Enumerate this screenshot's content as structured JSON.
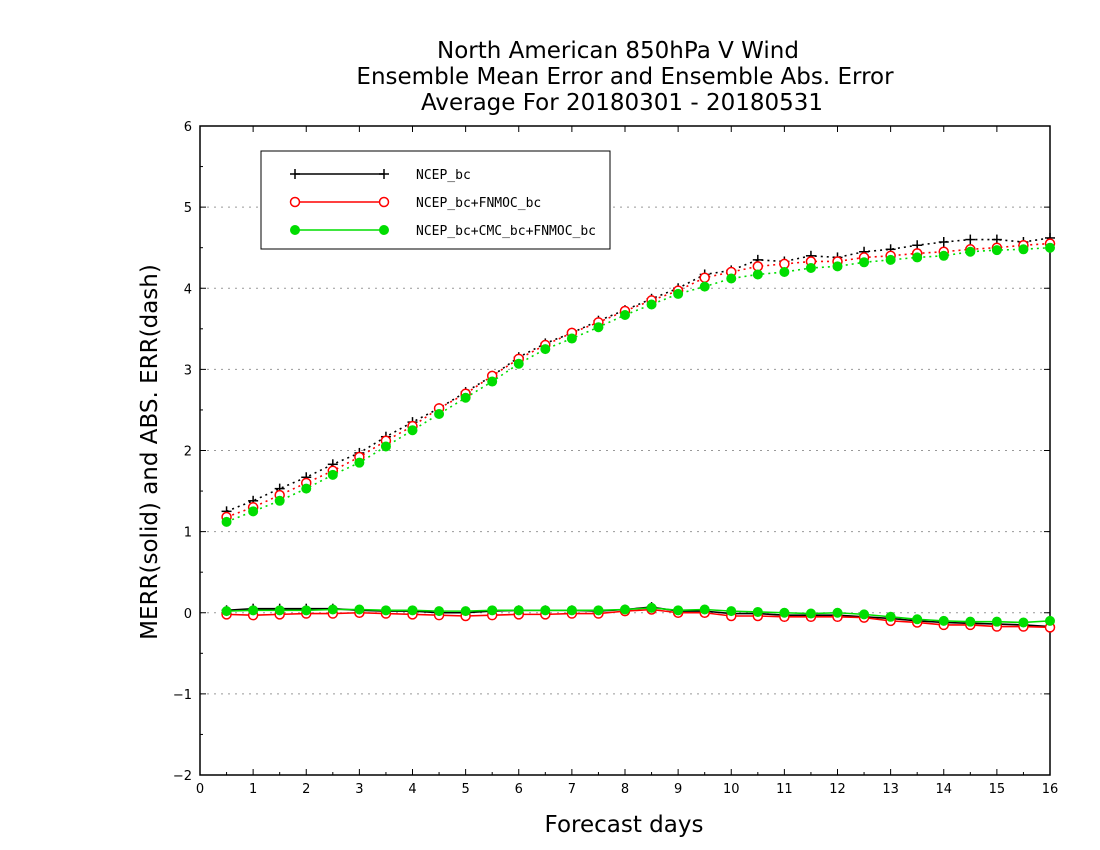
{
  "chart_data": {
    "type": "line",
    "title_lines": [
      "North American 850hPa V Wind",
      "Ensemble Mean Error and Ensemble Abs. Error",
      "Average For 20180301 - 20180531"
    ],
    "xlabel": "Forecast days",
    "ylabel": "MERR(solid) and ABS. ERR(dash)",
    "xlim": [
      0,
      16
    ],
    "ylim": [
      -2,
      6
    ],
    "xticks": [
      0,
      1,
      2,
      3,
      4,
      5,
      6,
      7,
      8,
      9,
      10,
      11,
      12,
      13,
      14,
      15,
      16
    ],
    "yticks": [
      -2,
      -1,
      0,
      1,
      2,
      3,
      4,
      5,
      6
    ],
    "ytick_labels": [
      "−2",
      "−1",
      "0",
      "1",
      "2",
      "3",
      "4",
      "5",
      "6"
    ],
    "grid": "horizontal dotted",
    "legend_position": "top-left",
    "x": [
      0.5,
      1,
      1.5,
      2,
      2.5,
      3,
      3.5,
      4,
      4.5,
      5,
      5.5,
      6,
      6.5,
      7,
      7.5,
      8,
      8.5,
      9,
      9.5,
      10,
      10.5,
      11,
      11.5,
      12,
      12.5,
      13,
      13.5,
      14,
      14.5,
      15,
      15.5,
      16
    ],
    "series": [
      {
        "name": "NCEP_bc",
        "color": "#000000",
        "marker": "plus",
        "abs_err": [
          1.25,
          1.38,
          1.53,
          1.67,
          1.83,
          1.97,
          2.17,
          2.35,
          2.52,
          2.72,
          2.92,
          3.15,
          3.32,
          3.45,
          3.6,
          3.73,
          3.87,
          4.0,
          4.17,
          4.22,
          4.35,
          4.33,
          4.4,
          4.38,
          4.45,
          4.48,
          4.53,
          4.57,
          4.6,
          4.6,
          4.57,
          4.62
        ],
        "mean_err": [
          0.03,
          0.05,
          0.05,
          0.05,
          0.05,
          0.03,
          0.02,
          0.02,
          0.0,
          0.0,
          0.02,
          0.03,
          0.03,
          0.03,
          0.02,
          0.04,
          0.07,
          0.02,
          0.02,
          -0.01,
          -0.01,
          -0.03,
          -0.03,
          -0.03,
          -0.05,
          -0.07,
          -0.1,
          -0.12,
          -0.13,
          -0.14,
          -0.15,
          -0.17
        ]
      },
      {
        "name": "NCEP_bc+FNMOC_bc",
        "color": "#ff0000",
        "marker": "open-circle",
        "abs_err": [
          1.18,
          1.3,
          1.45,
          1.6,
          1.75,
          1.92,
          2.12,
          2.3,
          2.52,
          2.7,
          2.92,
          3.13,
          3.3,
          3.45,
          3.58,
          3.72,
          3.85,
          3.97,
          4.13,
          4.2,
          4.27,
          4.3,
          4.33,
          4.33,
          4.38,
          4.4,
          4.43,
          4.45,
          4.48,
          4.5,
          4.53,
          4.55
        ],
        "mean_err": [
          -0.02,
          -0.03,
          -0.02,
          -0.01,
          -0.01,
          0.0,
          -0.01,
          -0.02,
          -0.03,
          -0.04,
          -0.03,
          -0.02,
          -0.02,
          -0.01,
          -0.01,
          0.02,
          0.04,
          0.0,
          0.0,
          -0.04,
          -0.04,
          -0.05,
          -0.05,
          -0.05,
          -0.06,
          -0.1,
          -0.12,
          -0.15,
          -0.15,
          -0.17,
          -0.17,
          -0.18
        ]
      },
      {
        "name": "NCEP_bc+CMC_bc+FNMOC_bc",
        "color": "#00dd00",
        "marker": "filled-circle",
        "abs_err": [
          1.12,
          1.25,
          1.38,
          1.53,
          1.7,
          1.85,
          2.05,
          2.25,
          2.45,
          2.65,
          2.85,
          3.07,
          3.25,
          3.38,
          3.52,
          3.67,
          3.8,
          3.93,
          4.02,
          4.12,
          4.17,
          4.2,
          4.25,
          4.27,
          4.32,
          4.35,
          4.38,
          4.4,
          4.45,
          4.47,
          4.48,
          4.5
        ],
        "mean_err": [
          0.02,
          0.03,
          0.03,
          0.03,
          0.04,
          0.04,
          0.03,
          0.03,
          0.02,
          0.02,
          0.03,
          0.03,
          0.03,
          0.03,
          0.03,
          0.04,
          0.06,
          0.03,
          0.04,
          0.02,
          0.01,
          0.0,
          -0.01,
          0.0,
          -0.02,
          -0.05,
          -0.08,
          -0.1,
          -0.11,
          -0.11,
          -0.12,
          -0.1
        ]
      }
    ]
  }
}
